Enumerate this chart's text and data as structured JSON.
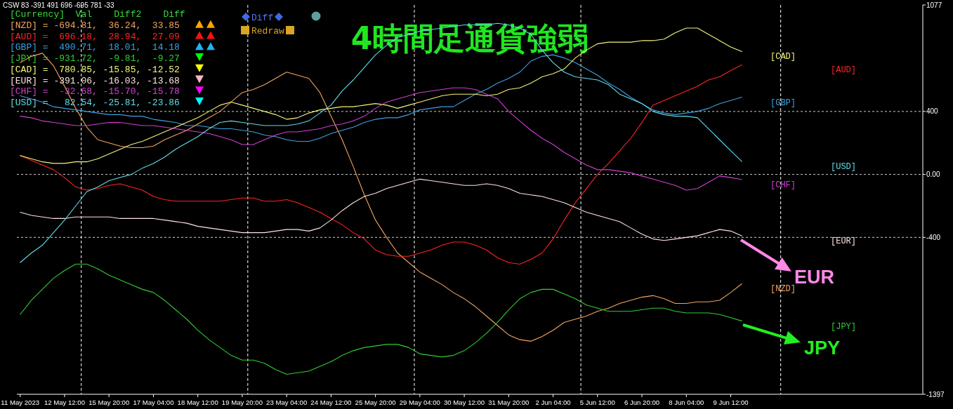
{
  "chart_data": {
    "type": "line",
    "title": "4時間足通貨強弱",
    "annotations": [
      "CSW 83 -391 491 696 -695 781 -33",
      "[Currency]  Val    Diff2    Diff",
      "[NZD] = -694.81,  36.24,  33.85",
      "[AUD] =  696.18,  28.94,  27.09",
      "[GBP] =  490.71,  18.01,  14.18",
      "[JPY] = -931.72,  -9.81,  -9.27",
      "[CAD] =  780.85, -15.85, -12.52",
      "[EUR] = -391.06, -16.03, -13.68",
      "[CHF] =  -32.68, -15.70, -15.78",
      "[USD] =   82.54, -25.81, -23.86",
      "Diff",
      "Redraw",
      "EUR",
      "JPY"
    ],
    "categories": [
      "11 May 2023",
      null,
      null,
      null,
      "12 May 12:00",
      null,
      null,
      null,
      "15 May 20:00",
      null,
      null,
      null,
      "17 May 04:00",
      null,
      null,
      null,
      "18 May 12:00",
      null,
      null,
      null,
      "19 May 20:00",
      null,
      null,
      null,
      "23 May 04:00",
      null,
      null,
      null,
      "24 May 12:00",
      null,
      null,
      null,
      "25 May 20:00",
      null,
      null,
      null,
      "29 May 04:00",
      null,
      null,
      null,
      "30 May 12:00",
      null,
      null,
      null,
      "31 May 20:00",
      null,
      null,
      null,
      "2 Jun 04:00",
      null,
      null,
      null,
      "5 Jun 12:00",
      null,
      null,
      null,
      "6 Jun 20:00",
      null,
      null,
      null,
      "8 Jun 04:00",
      null,
      null,
      null,
      "9 Jun 12:00",
      null,
      null,
      null,
      null,
      null,
      null,
      null,
      null,
      null,
      null,
      null,
      null,
      null,
      null,
      null,
      null,
      null
    ],
    "ylim": [
      -1397,
      1077
    ],
    "yticks": [
      1077,
      400,
      {
        "value": 0,
        "label": "0.00"
      },
      -400,
      -1397
    ],
    "grid": "y",
    "series": [
      {
        "name": "[NZD]",
        "color": "#f4a460",
        "values": [
          710,
          750,
          770,
          690,
          560,
          420,
          300,
          220,
          200,
          180,
          170,
          170,
          180,
          220,
          250,
          280,
          320,
          360,
          400,
          460,
          520,
          540,
          570,
          610,
          650,
          630,
          610,
          520,
          370,
          220,
          50,
          -130,
          -290,
          -400,
          -500,
          -560,
          -620,
          -660,
          -700,
          -750,
          -790,
          -840,
          -900,
          -960,
          -1020,
          -1050,
          -1060,
          -1030,
          -990,
          -940,
          -920,
          -900,
          -870,
          -850,
          -820,
          -800,
          -780,
          -770,
          -790,
          -820,
          -820,
          -810,
          -810,
          -800,
          -750,
          -694.81,
          null,
          null,
          null,
          null,
          null,
          null,
          null,
          null,
          null,
          null,
          null,
          null,
          null,
          null,
          null,
          null
        ]
      },
      {
        "name": "[AUD]",
        "color": "#ff2424",
        "values": [
          120,
          90,
          60,
          30,
          -20,
          -80,
          -100,
          -90,
          -70,
          -60,
          -80,
          -100,
          -140,
          -160,
          -170,
          -170,
          -170,
          -170,
          -170,
          -160,
          -150,
          -150,
          -170,
          -170,
          -160,
          -180,
          -210,
          -240,
          -280,
          -320,
          -370,
          -410,
          -480,
          -510,
          -520,
          -520,
          -500,
          -480,
          -450,
          -430,
          -430,
          -450,
          -480,
          -530,
          -560,
          -570,
          -540,
          -500,
          -410,
          -290,
          -180,
          -90,
          0,
          70,
          150,
          230,
          330,
          440,
          470,
          500,
          530,
          560,
          600,
          620,
          660,
          696.18,
          null,
          null,
          null,
          null,
          null,
          null,
          null,
          null,
          null,
          null,
          null,
          null,
          null,
          null,
          null,
          null
        ]
      },
      {
        "name": "[GBP]",
        "color": "#3fa0e0",
        "values": [
          500,
          480,
          460,
          430,
          420,
          410,
          400,
          390,
          380,
          380,
          370,
          370,
          350,
          340,
          330,
          310,
          310,
          300,
          290,
          290,
          280,
          270,
          250,
          240,
          220,
          210,
          210,
          230,
          260,
          280,
          300,
          330,
          350,
          360,
          360,
          380,
          410,
          420,
          430,
          430,
          470,
          510,
          540,
          580,
          610,
          650,
          720,
          750,
          760,
          740,
          710,
          670,
          630,
          580,
          540,
          490,
          450,
          410,
          390,
          380,
          390,
          400,
          420,
          450,
          470,
          490.71,
          null,
          null,
          null,
          null,
          null,
          null,
          null,
          null,
          null,
          null,
          null,
          null,
          null,
          null,
          null,
          null
        ]
      },
      {
        "name": "[JPY]",
        "color": "#32cd32",
        "values": [
          -890,
          -800,
          -730,
          -660,
          -610,
          -570,
          -570,
          -600,
          -640,
          -670,
          -700,
          -730,
          -750,
          -800,
          -860,
          -920,
          -990,
          -1050,
          -1100,
          -1150,
          -1180,
          -1180,
          -1200,
          -1240,
          -1270,
          -1260,
          -1250,
          -1220,
          -1190,
          -1150,
          -1120,
          -1100,
          -1090,
          -1080,
          -1080,
          -1100,
          -1140,
          -1150,
          -1160,
          -1150,
          -1120,
          -1070,
          -1010,
          -940,
          -860,
          -790,
          -750,
          -730,
          -730,
          -760,
          -790,
          -830,
          -850,
          -870,
          -870,
          -870,
          -860,
          -850,
          -850,
          -870,
          -880,
          -880,
          -880,
          -890,
          -910,
          -931.72,
          null,
          null,
          null,
          null,
          null,
          null,
          null,
          null,
          null,
          null,
          null,
          null,
          null,
          null,
          null,
          null
        ]
      },
      {
        "name": "[CAD]",
        "color": "#f5f57a",
        "values": [
          120,
          100,
          80,
          70,
          70,
          80,
          80,
          100,
          130,
          160,
          190,
          210,
          240,
          270,
          300,
          330,
          360,
          400,
          440,
          460,
          440,
          420,
          400,
          380,
          350,
          360,
          390,
          410,
          420,
          430,
          430,
          440,
          450,
          440,
          420,
          440,
          460,
          480,
          500,
          510,
          510,
          510,
          500,
          510,
          540,
          550,
          580,
          620,
          640,
          670,
          740,
          790,
          830,
          840,
          840,
          840,
          850,
          850,
          860,
          900,
          930,
          930,
          890,
          850,
          810,
          780.85,
          null,
          null,
          null,
          null,
          null,
          null,
          null,
          null,
          null,
          null,
          null,
          null,
          null,
          null,
          null,
          null
        ]
      },
      {
        "name": "[EUR]",
        "color": "#ffe4e1",
        "values": [
          -240,
          -260,
          -270,
          -280,
          -280,
          -270,
          -270,
          -270,
          -270,
          -280,
          -280,
          -280,
          -280,
          -290,
          -300,
          -310,
          -330,
          -340,
          -350,
          -360,
          -370,
          -370,
          -370,
          -360,
          -350,
          -350,
          -360,
          -340,
          -290,
          -230,
          -180,
          -140,
          -120,
          -90,
          -70,
          -50,
          -30,
          -40,
          -50,
          -60,
          -70,
          -70,
          -60,
          -70,
          -90,
          -120,
          -130,
          -140,
          -160,
          -180,
          -210,
          -240,
          -260,
          -280,
          -300,
          -340,
          -380,
          -410,
          -420,
          -410,
          -400,
          -390,
          -370,
          -350,
          -360,
          -391.06,
          null,
          null,
          null,
          null,
          null,
          null,
          null,
          null,
          null,
          null,
          null,
          null,
          null,
          null,
          null,
          null
        ]
      },
      {
        "name": "[CHF]",
        "color": "#d040d0",
        "values": [
          370,
          360,
          340,
          330,
          320,
          310,
          310,
          320,
          330,
          330,
          320,
          310,
          310,
          300,
          290,
          280,
          270,
          260,
          240,
          220,
          190,
          190,
          220,
          250,
          270,
          270,
          280,
          290,
          310,
          320,
          340,
          370,
          420,
          460,
          480,
          500,
          520,
          530,
          540,
          550,
          550,
          540,
          510,
          480,
          400,
          340,
          280,
          230,
          190,
          140,
          100,
          60,
          30,
          30,
          20,
          10,
          -10,
          -30,
          -50,
          -70,
          -100,
          -90,
          -50,
          -10,
          -20,
          -32.68,
          null,
          null,
          null,
          null,
          null,
          null,
          null,
          null,
          null,
          null,
          null,
          null,
          null,
          null,
          null,
          null
        ]
      },
      {
        "name": "[USD]",
        "color": "#62dbe8",
        "values": [
          -560,
          -500,
          -450,
          -370,
          -290,
          -200,
          -110,
          -80,
          -40,
          -20,
          0,
          40,
          70,
          110,
          160,
          200,
          240,
          290,
          330,
          340,
          330,
          320,
          310,
          310,
          310,
          320,
          340,
          390,
          440,
          530,
          600,
          680,
          760,
          820,
          870,
          890,
          910,
          920,
          930,
          940,
          950,
          950,
          950,
          960,
          950,
          930,
          890,
          790,
          710,
          650,
          620,
          610,
          600,
          570,
          510,
          480,
          450,
          400,
          380,
          370,
          370,
          360,
          290,
          220,
          150,
          82.54,
          null,
          null,
          null,
          null,
          null,
          null,
          null,
          null,
          null,
          null,
          null,
          null,
          null,
          null,
          null,
          null
        ]
      }
    ]
  }
}
